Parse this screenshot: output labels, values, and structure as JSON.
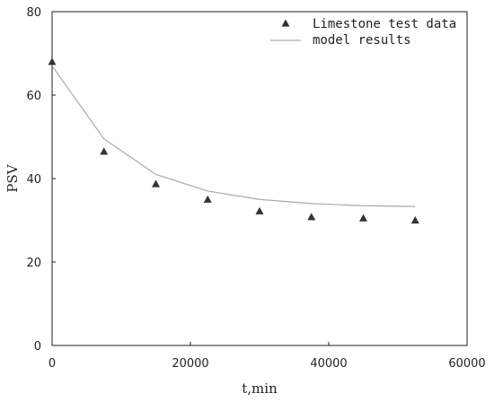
{
  "chart_data": {
    "type": "scatter",
    "title": "",
    "xlabel": "t,min",
    "ylabel": "PSV",
    "xlim": [
      0,
      60000
    ],
    "ylim": [
      0,
      80
    ],
    "xticks": [
      0,
      20000,
      40000,
      60000
    ],
    "yticks": [
      0,
      20,
      40,
      60,
      80
    ],
    "grid": false,
    "legend_position": "top-right",
    "series": [
      {
        "name": "Limestone test data",
        "type": "scatter",
        "marker": "triangle",
        "color": "#333333",
        "x": [
          0,
          7500,
          15000,
          22500,
          30000,
          37500,
          45000,
          52500
        ],
        "y": [
          68,
          46.5,
          38.7,
          35,
          32.2,
          30.8,
          30.5,
          30
        ]
      },
      {
        "name": "model results",
        "type": "line",
        "color": "#aaaaaa",
        "x": [
          0,
          7500,
          15000,
          22500,
          30000,
          37500,
          45000,
          52500
        ],
        "y": [
          67,
          49.5,
          41,
          37,
          35,
          34,
          33.5,
          33.3
        ]
      }
    ]
  }
}
